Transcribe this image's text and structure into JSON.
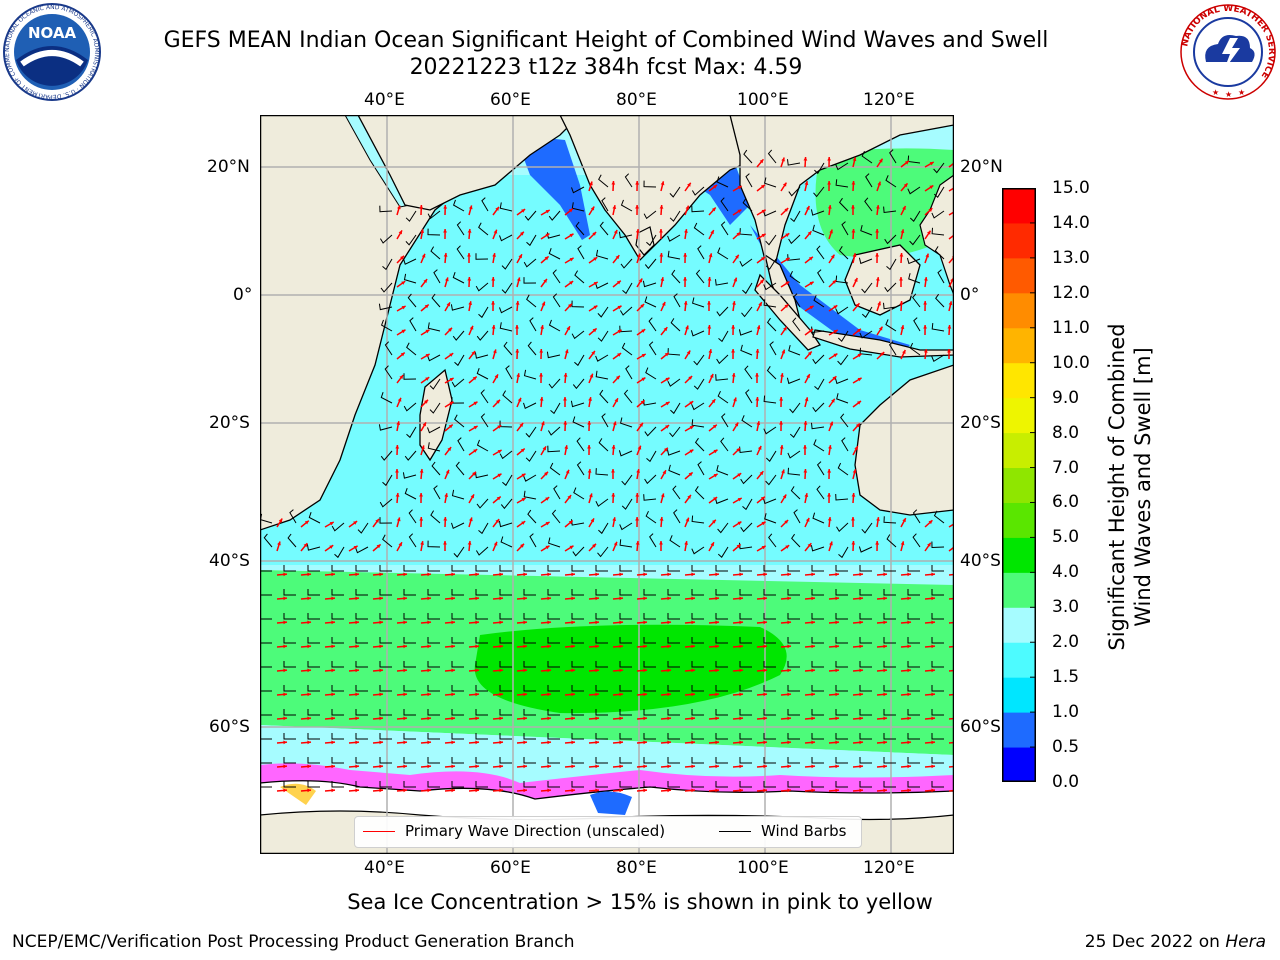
{
  "header": {
    "title_line1": "GEFS MEAN Indian Ocean Significant Height of Combined Wind Waves and Swell",
    "title_line2": "20221223 t12z 384h fcst   Max: 4.59"
  },
  "logos": {
    "noaa_text": "NOAA",
    "noaa_ring_text": "NATIONAL OCEANIC AND ATMOSPHERIC ADMINISTRATION · U.S. DEPARTMENT OF COMMERCE",
    "nws_ring_text": "NATIONAL WEATHER SERVICE"
  },
  "map": {
    "lon_labels": [
      "40°E",
      "60°E",
      "80°E",
      "100°E",
      "120°E"
    ],
    "lat_labels": [
      "20°N",
      "0°",
      "20°S",
      "40°S",
      "60°S"
    ],
    "colors": {
      "land": "#efecdc",
      "ice": "#ffffff",
      "grid": "#b0b0b0",
      "arrows": "#ff0000",
      "barbs": "#000000"
    }
  },
  "legend": {
    "wave_label": "Primary Wave Direction (unscaled)",
    "barb_label": "Wind Barbs",
    "wave_color": "#ff0000",
    "barb_color": "#000000"
  },
  "colorbar": {
    "label_line1": "Significant Height of Combined",
    "label_line2": "Wind Waves and Swell [m]",
    "ticks": [
      "0.0",
      "0.5",
      "1.0",
      "1.5",
      "2.0",
      "3.0",
      "4.0",
      "5.0",
      "6.0",
      "7.0",
      "8.0",
      "9.0",
      "10.0",
      "11.0",
      "12.0",
      "13.0",
      "14.0",
      "15.0"
    ],
    "colors": [
      "#0000ff",
      "#1e6bff",
      "#00e6ff",
      "#4dfbff",
      "#a6fcff",
      "#4dfb7a",
      "#00e600",
      "#5ae600",
      "#8fe600",
      "#c8ee00",
      "#eef500",
      "#ffe600",
      "#ffb400",
      "#ff8c00",
      "#ff5a00",
      "#ff2a00",
      "#ff0000"
    ]
  },
  "notes": {
    "sea_ice": "Sea Ice Concentration > 15% is shown in pink to yellow"
  },
  "footer": {
    "left": "NCEP/EMC/Verification Post Processing Product Generation Branch",
    "right_prefix": "25 Dec 2022 on ",
    "right_machine": "Hera"
  }
}
